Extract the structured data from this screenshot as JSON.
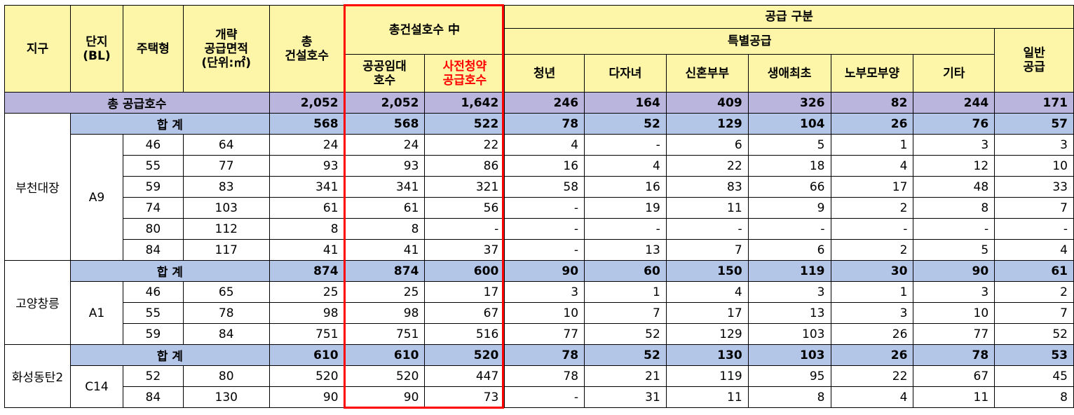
{
  "header": {
    "district": "지구",
    "block_l1": "단지",
    "block_l2": "(BL)",
    "type": "주택형",
    "area_l1": "개략",
    "area_l2": "공급면적",
    "area_l3": "(단위:㎡)",
    "total_l1": "총",
    "total_l2": "건설호수",
    "within": "총건설호수 中",
    "public_l1": "공공임대",
    "public_l2": "호수",
    "pre_l1": "사전청약",
    "pre_l2": "공급호수",
    "supply": "공급 구분",
    "special": "특별공급",
    "youth": "청년",
    "multichild": "다자녀",
    "newlywed": "신혼부부",
    "firsttime": "생애최초",
    "parents": "노부모부양",
    "other": "기타",
    "general_l1": "일반",
    "general_l2": "공급"
  },
  "grand_total": {
    "label": "총 공급호수",
    "values": [
      "2,052",
      "2,052",
      "1,642",
      "246",
      "164",
      "409",
      "326",
      "82",
      "244",
      "171"
    ]
  },
  "sub_label": "합 계",
  "districts": [
    {
      "name": "부천대장",
      "block": "A9",
      "subtotal": [
        "568",
        "568",
        "522",
        "78",
        "52",
        "129",
        "104",
        "26",
        "76",
        "57"
      ],
      "rows": [
        {
          "type": "46",
          "area": "64",
          "values": [
            "24",
            "24",
            "22",
            "4",
            "-",
            "6",
            "5",
            "1",
            "3",
            "3"
          ]
        },
        {
          "type": "55",
          "area": "77",
          "values": [
            "93",
            "93",
            "86",
            "16",
            "4",
            "22",
            "18",
            "4",
            "12",
            "10"
          ]
        },
        {
          "type": "59",
          "area": "83",
          "values": [
            "341",
            "341",
            "321",
            "58",
            "16",
            "83",
            "66",
            "17",
            "48",
            "33"
          ]
        },
        {
          "type": "74",
          "area": "103",
          "values": [
            "61",
            "61",
            "56",
            "-",
            "19",
            "11",
            "9",
            "2",
            "8",
            "7"
          ]
        },
        {
          "type": "80",
          "area": "112",
          "values": [
            "8",
            "8",
            "-",
            "-",
            "-",
            "-",
            "-",
            "-",
            "-",
            "-"
          ]
        },
        {
          "type": "84",
          "area": "117",
          "values": [
            "41",
            "41",
            "37",
            "-",
            "13",
            "7",
            "6",
            "2",
            "5",
            "4"
          ]
        }
      ]
    },
    {
      "name": "고양창릉",
      "block": "A1",
      "subtotal": [
        "874",
        "874",
        "600",
        "90",
        "60",
        "150",
        "119",
        "30",
        "90",
        "61"
      ],
      "rows": [
        {
          "type": "46",
          "area": "65",
          "values": [
            "25",
            "25",
            "17",
            "3",
            "1",
            "4",
            "3",
            "1",
            "3",
            "2"
          ]
        },
        {
          "type": "55",
          "area": "78",
          "values": [
            "98",
            "98",
            "67",
            "10",
            "7",
            "17",
            "13",
            "3",
            "10",
            "7"
          ]
        },
        {
          "type": "59",
          "area": "84",
          "values": [
            "751",
            "751",
            "516",
            "77",
            "52",
            "129",
            "103",
            "26",
            "77",
            "52"
          ]
        }
      ]
    },
    {
      "name": "화성동탄2",
      "block": "C14",
      "subtotal": [
        "610",
        "610",
        "520",
        "78",
        "52",
        "130",
        "103",
        "26",
        "78",
        "53"
      ],
      "rows": [
        {
          "type": "52",
          "area": "80",
          "values": [
            "520",
            "520",
            "447",
            "78",
            "21",
            "119",
            "95",
            "22",
            "67",
            "45"
          ]
        },
        {
          "type": "84",
          "area": "130",
          "values": [
            "90",
            "90",
            "73",
            "-",
            "31",
            "11",
            "8",
            "4",
            "11",
            "8"
          ]
        }
      ]
    }
  ],
  "colors": {
    "header_bg": "#fdf6a9",
    "total_bg": "#b9b5dc",
    "subtotal_bg": "#b4c6e7",
    "highlight": "#ff0000"
  }
}
